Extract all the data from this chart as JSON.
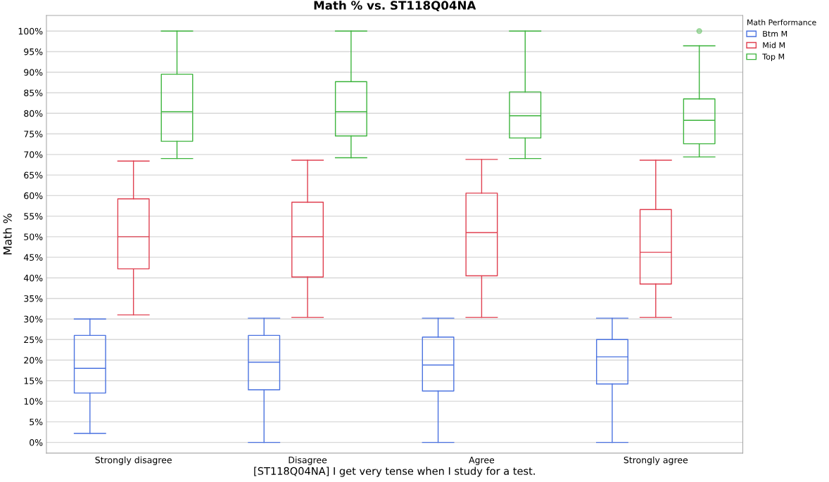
{
  "chart_data": {
    "type": "box",
    "title": "Math % vs. ST118Q04NA",
    "xlabel": "[ST118Q04NA] I get very tense when I study for a test.",
    "ylabel": "Math %",
    "legend_title": "Math Performance",
    "legend": "top right",
    "grid": "y",
    "categories": [
      "Strongly disagree",
      "Disagree",
      "Agree",
      "Strongly agree"
    ],
    "ylim": [
      -2.6,
      103.8
    ],
    "yticks": [
      {
        "value": 0,
        "label": "0%"
      },
      {
        "value": 5,
        "label": "5%"
      },
      {
        "value": 10,
        "label": "10%"
      },
      {
        "value": 15,
        "label": "15%"
      },
      {
        "value": 20,
        "label": "20%"
      },
      {
        "value": 25,
        "label": "25%"
      },
      {
        "value": 30,
        "label": "30%"
      },
      {
        "value": 35,
        "label": "35%"
      },
      {
        "value": 40,
        "label": "40%"
      },
      {
        "value": 45,
        "label": "45%"
      },
      {
        "value": 50,
        "label": "50%"
      },
      {
        "value": 55,
        "label": "55%"
      },
      {
        "value": 60,
        "label": "60%"
      },
      {
        "value": 65,
        "label": "65%"
      },
      {
        "value": 70,
        "label": "70%"
      },
      {
        "value": 75,
        "label": "75%"
      },
      {
        "value": 80,
        "label": "80%"
      },
      {
        "value": 85,
        "label": "85%"
      },
      {
        "value": 90,
        "label": "90%"
      },
      {
        "value": 95,
        "label": "95%"
      },
      {
        "value": 100,
        "label": "100%"
      }
    ],
    "series": [
      {
        "name": "Btm M",
        "color": "#4a72e0",
        "boxes": [
          {
            "low": 2.2,
            "q1": 12,
            "median": 18,
            "q3": 26,
            "high": 30
          },
          {
            "low": 0,
            "q1": 12.8,
            "median": 19.5,
            "q3": 26,
            "high": 30.2
          },
          {
            "low": 0,
            "q1": 12.5,
            "median": 18.8,
            "q3": 25.6,
            "high": 30.2
          },
          {
            "low": 0,
            "q1": 14.2,
            "median": 20.8,
            "q3": 25,
            "high": 30.2
          }
        ]
      },
      {
        "name": "Mid M",
        "color": "#e04050",
        "boxes": [
          {
            "low": 31,
            "q1": 42.2,
            "median": 50,
            "q3": 59.2,
            "high": 68.4
          },
          {
            "low": 30.4,
            "q1": 40.2,
            "median": 50,
            "q3": 58.4,
            "high": 68.6
          },
          {
            "low": 30.4,
            "q1": 40.5,
            "median": 51,
            "q3": 60.6,
            "high": 68.8
          },
          {
            "low": 30.4,
            "q1": 38.5,
            "median": 46.2,
            "q3": 56.6,
            "high": 68.6
          }
        ]
      },
      {
        "name": "Top M",
        "color": "#3cb43c",
        "boxes": [
          {
            "low": 69,
            "q1": 73.2,
            "median": 80.4,
            "q3": 89.5,
            "high": 100
          },
          {
            "low": 69.2,
            "q1": 74.5,
            "median": 80.4,
            "q3": 87.7,
            "high": 100
          },
          {
            "low": 69,
            "q1": 74,
            "median": 79.4,
            "q3": 85.2,
            "high": 100
          },
          {
            "low": 69.4,
            "q1": 72.6,
            "median": 78.3,
            "q3": 83.5,
            "high": 96.4,
            "outliers": [
              100
            ]
          }
        ]
      }
    ]
  }
}
